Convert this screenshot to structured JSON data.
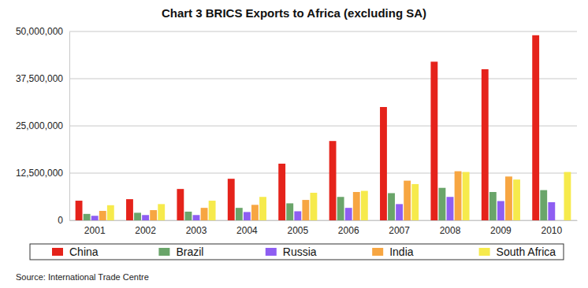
{
  "chart_data": {
    "type": "bar",
    "title": "Chart 3 BRICS Exports to Africa (excluding SA)",
    "annotations": [
      "Source: International Trade Centre"
    ],
    "categories": [
      "2001",
      "2002",
      "2003",
      "2004",
      "2005",
      "2006",
      "2007",
      "2008",
      "2009",
      "2010"
    ],
    "series": [
      {
        "name": "China",
        "color": "#e5231b",
        "values": [
          5200000,
          5600000,
          8300000,
          11000000,
          15000000,
          21000000,
          30000000,
          42000000,
          40000000,
          49000000
        ]
      },
      {
        "name": "Brazil",
        "color": "#6aa56a",
        "values": [
          1700000,
          2000000,
          2300000,
          3300000,
          4500000,
          6200000,
          7200000,
          8600000,
          7500000,
          8000000
        ]
      },
      {
        "name": "Russia",
        "color": "#8e5ef2",
        "values": [
          1200000,
          1400000,
          1400000,
          2200000,
          2400000,
          3300000,
          4300000,
          6200000,
          5100000,
          4800000
        ]
      },
      {
        "name": "India",
        "color": "#f7a642",
        "values": [
          2500000,
          2700000,
          3300000,
          4100000,
          5400000,
          7500000,
          10500000,
          13000000,
          11600000,
          null
        ]
      },
      {
        "name": "South Africa",
        "color": "#f6ea4c",
        "values": [
          4000000,
          4300000,
          5200000,
          6200000,
          7300000,
          7800000,
          9600000,
          12800000,
          10800000,
          12800000
        ]
      }
    ],
    "ylim": [
      0,
      50000000
    ],
    "yticks": [
      0,
      {
        "value": 12500000,
        "label": "12,500,000"
      },
      {
        "value": 25000000,
        "label": "25,000,000"
      },
      {
        "value": 37500000,
        "label": "37,500,000"
      },
      {
        "value": 50000000,
        "label": "50,000,000"
      }
    ],
    "grid": true,
    "legend": "bottom"
  }
}
